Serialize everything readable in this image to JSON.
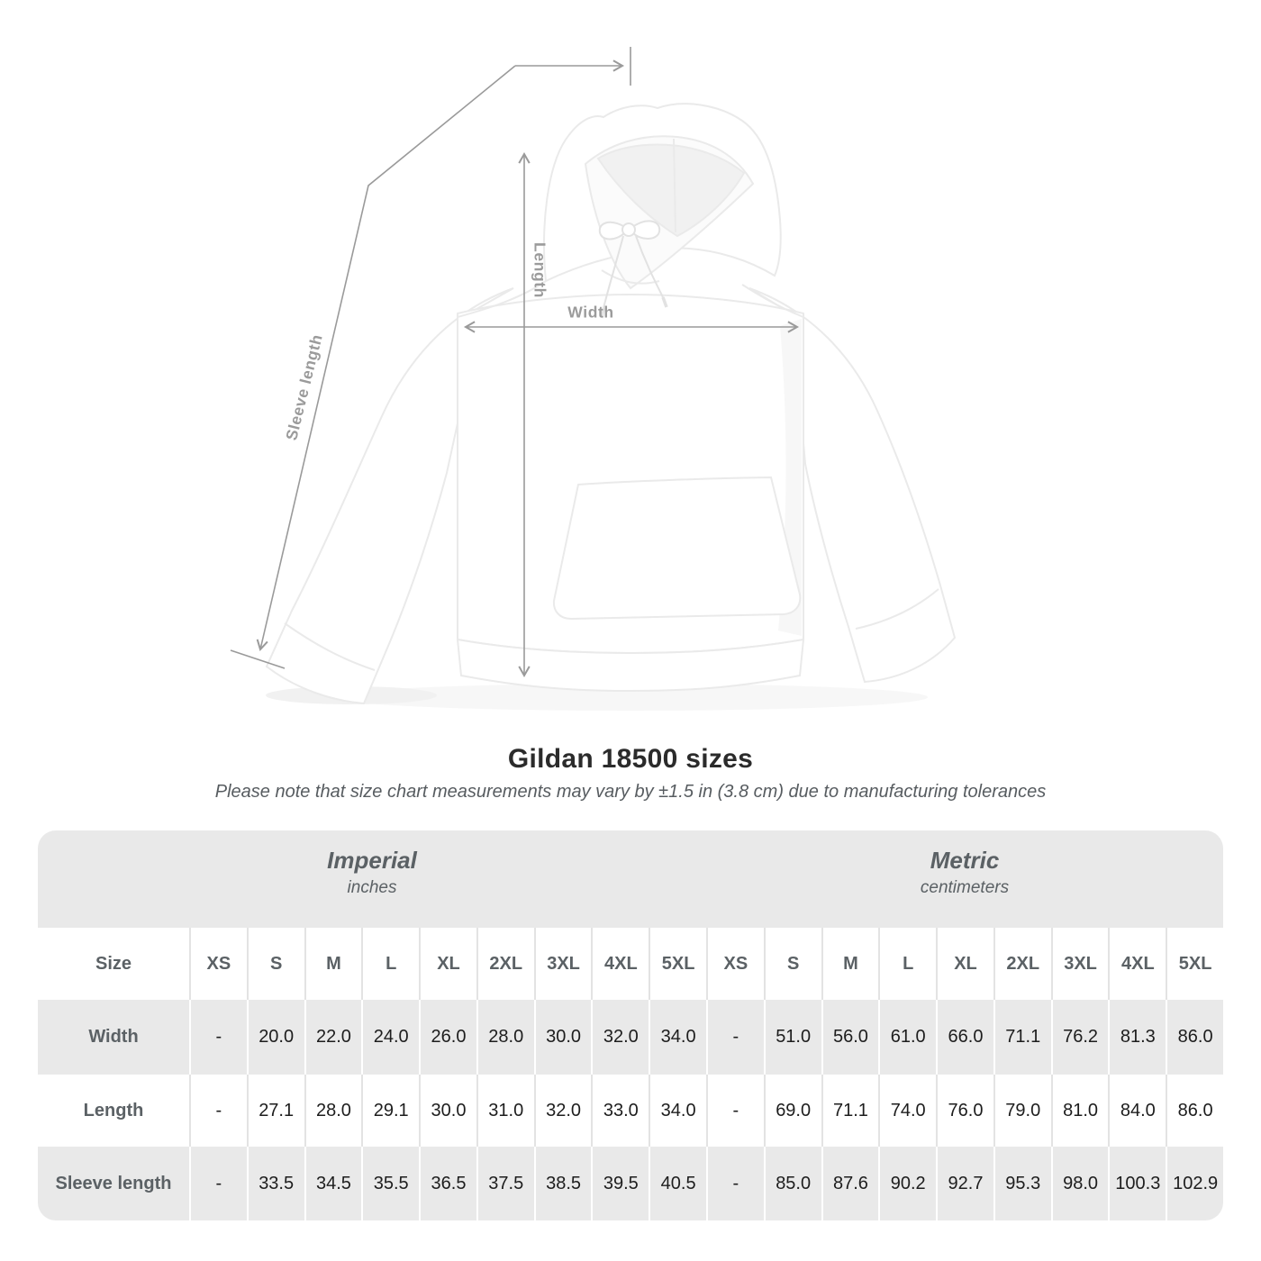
{
  "diagram_labels": {
    "length": "Length",
    "width": "Width",
    "sleeve_length": "Sleeve length"
  },
  "chart_data": {
    "type": "table",
    "title": "Gildan 18500 sizes",
    "note": "Please note that size chart measurements may vary by ±1.5 in (3.8 cm) due to manufacturing tolerances",
    "unit_headers": [
      {
        "label": "Imperial",
        "sub": "inches"
      },
      {
        "label": "Metric",
        "sub": "centimeters"
      }
    ],
    "size_header": [
      "Size",
      "XS",
      "S",
      "M",
      "L",
      "XL",
      "2XL",
      "3XL",
      "4XL",
      "5XL",
      "XS",
      "S",
      "M",
      "L",
      "XL",
      "2XL",
      "3XL",
      "4XL",
      "5XL"
    ],
    "rows": [
      {
        "label": "Width",
        "values": [
          "-",
          "20.0",
          "22.0",
          "24.0",
          "26.0",
          "28.0",
          "30.0",
          "32.0",
          "34.0",
          "-",
          "51.0",
          "56.0",
          "61.0",
          "66.0",
          "71.1",
          "76.2",
          "81.3",
          "86.0"
        ]
      },
      {
        "label": "Length",
        "values": [
          "-",
          "27.1",
          "28.0",
          "29.1",
          "30.0",
          "31.0",
          "32.0",
          "33.0",
          "34.0",
          "-",
          "69.0",
          "71.1",
          "74.0",
          "76.0",
          "79.0",
          "81.0",
          "84.0",
          "86.0"
        ]
      },
      {
        "label": "Sleeve length",
        "values": [
          "-",
          "33.5",
          "34.5",
          "35.5",
          "36.5",
          "37.5",
          "38.5",
          "39.5",
          "40.5",
          "-",
          "85.0",
          "87.6",
          "90.2",
          "92.7",
          "95.3",
          "98.0",
          "100.3",
          "102.9"
        ]
      }
    ]
  },
  "colors": {
    "band_gray": "#e9e9e9",
    "separator_on_white": "#e3e3e3",
    "separator_on_gray": "#ffffff",
    "header_text": "#5b6165",
    "data_text": "#1d1d1d",
    "measure_line": "#9a9a9a",
    "measure_label": "#9b9b9b",
    "title_text": "#2b2b2b"
  }
}
